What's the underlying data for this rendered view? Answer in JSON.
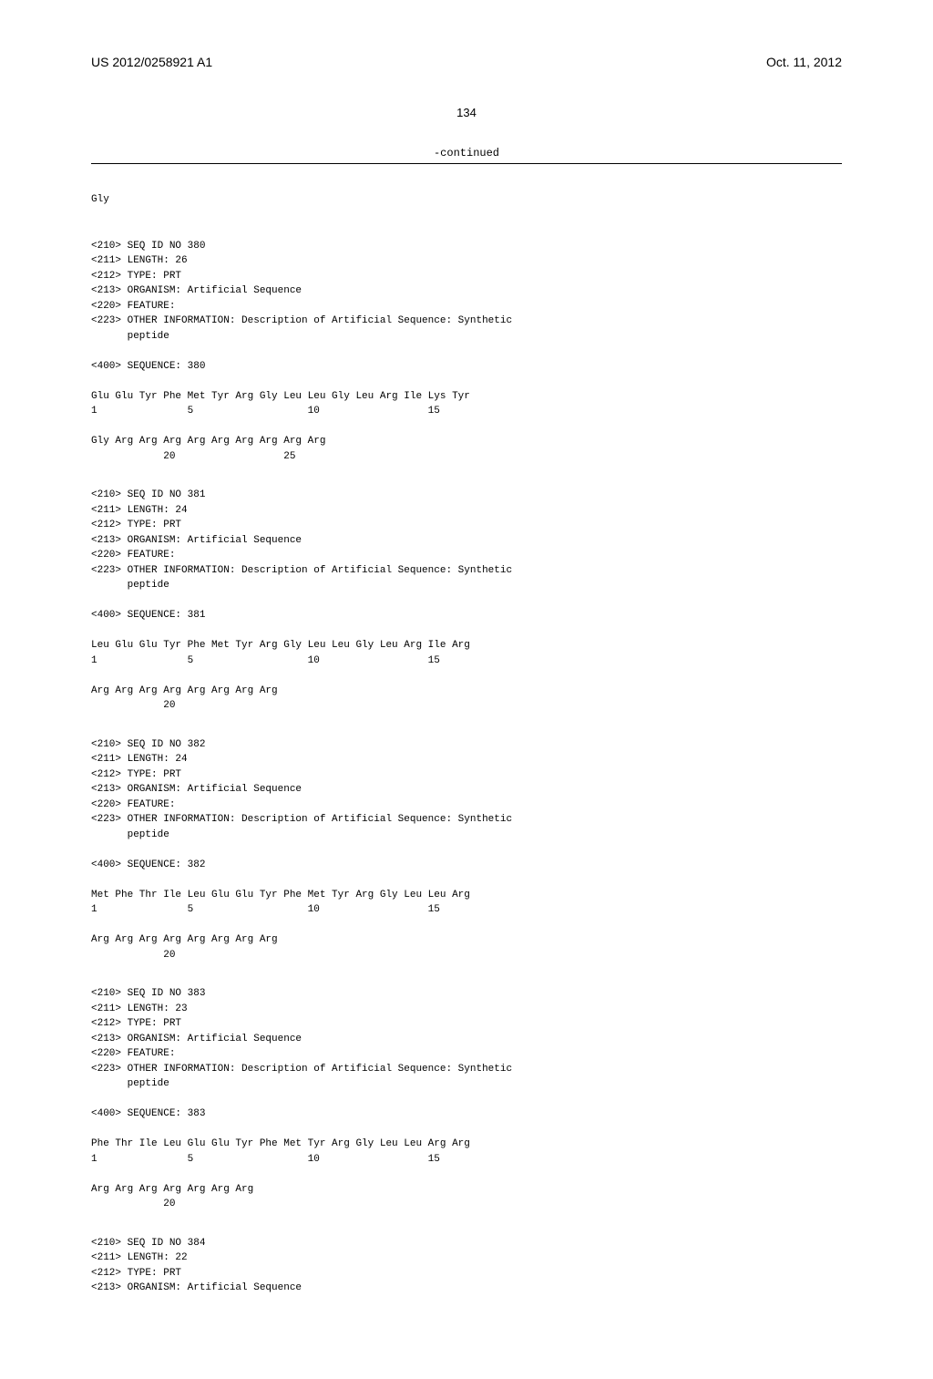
{
  "header": {
    "pub_number": "US 2012/0258921 A1",
    "pub_date": "Oct. 11, 2012"
  },
  "page_number": "134",
  "continued_label": "-continued",
  "gly_line": "Gly",
  "sequences": [
    {
      "meta": [
        "<210> SEQ ID NO 380",
        "<211> LENGTH: 26",
        "<212> TYPE: PRT",
        "<213> ORGANISM: Artificial Sequence",
        "<220> FEATURE:",
        "<223> OTHER INFORMATION: Description of Artificial Sequence: Synthetic",
        "      peptide"
      ],
      "seq_header": "<400> SEQUENCE: 380",
      "lines": [
        "Glu Glu Tyr Phe Met Tyr Arg Gly Leu Leu Gly Leu Arg Ile Lys Tyr",
        "1               5                   10                  15",
        "",
        "Gly Arg Arg Arg Arg Arg Arg Arg Arg Arg",
        "            20                  25"
      ]
    },
    {
      "meta": [
        "<210> SEQ ID NO 381",
        "<211> LENGTH: 24",
        "<212> TYPE: PRT",
        "<213> ORGANISM: Artificial Sequence",
        "<220> FEATURE:",
        "<223> OTHER INFORMATION: Description of Artificial Sequence: Synthetic",
        "      peptide"
      ],
      "seq_header": "<400> SEQUENCE: 381",
      "lines": [
        "Leu Glu Glu Tyr Phe Met Tyr Arg Gly Leu Leu Gly Leu Arg Ile Arg",
        "1               5                   10                  15",
        "",
        "Arg Arg Arg Arg Arg Arg Arg Arg",
        "            20"
      ]
    },
    {
      "meta": [
        "<210> SEQ ID NO 382",
        "<211> LENGTH: 24",
        "<212> TYPE: PRT",
        "<213> ORGANISM: Artificial Sequence",
        "<220> FEATURE:",
        "<223> OTHER INFORMATION: Description of Artificial Sequence: Synthetic",
        "      peptide"
      ],
      "seq_header": "<400> SEQUENCE: 382",
      "lines": [
        "Met Phe Thr Ile Leu Glu Glu Tyr Phe Met Tyr Arg Gly Leu Leu Arg",
        "1               5                   10                  15",
        "",
        "Arg Arg Arg Arg Arg Arg Arg Arg",
        "            20"
      ]
    },
    {
      "meta": [
        "<210> SEQ ID NO 383",
        "<211> LENGTH: 23",
        "<212> TYPE: PRT",
        "<213> ORGANISM: Artificial Sequence",
        "<220> FEATURE:",
        "<223> OTHER INFORMATION: Description of Artificial Sequence: Synthetic",
        "      peptide"
      ],
      "seq_header": "<400> SEQUENCE: 383",
      "lines": [
        "Phe Thr Ile Leu Glu Glu Tyr Phe Met Tyr Arg Gly Leu Leu Arg Arg",
        "1               5                   10                  15",
        "",
        "Arg Arg Arg Arg Arg Arg Arg",
        "            20"
      ]
    },
    {
      "meta": [
        "<210> SEQ ID NO 384",
        "<211> LENGTH: 22",
        "<212> TYPE: PRT",
        "<213> ORGANISM: Artificial Sequence"
      ],
      "seq_header": "",
      "lines": []
    }
  ]
}
